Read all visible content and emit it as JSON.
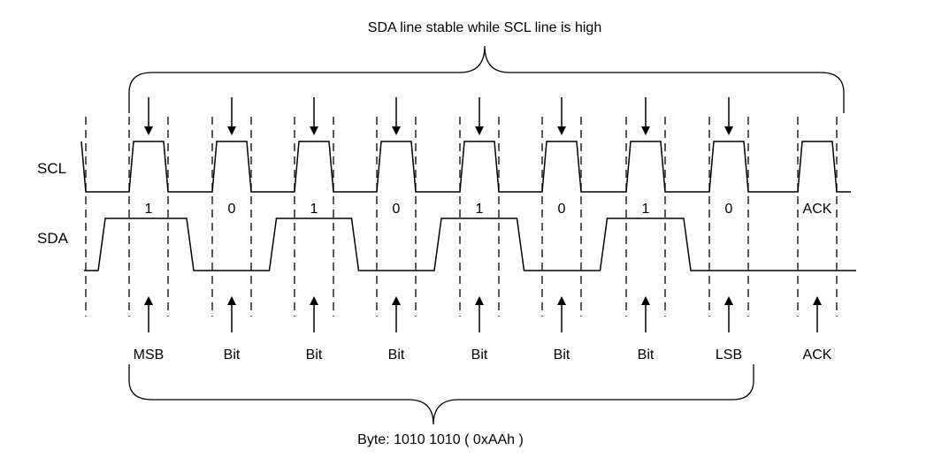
{
  "top_caption": "SDA line stable while SCL line is high",
  "bottom_caption": "Byte: 1010 1010 ( 0xAAh )",
  "signals": {
    "scl": "SCL",
    "sda": "SDA"
  },
  "bits": [
    {
      "value": "1",
      "role": "MSB"
    },
    {
      "value": "0",
      "role": "Bit"
    },
    {
      "value": "1",
      "role": "Bit"
    },
    {
      "value": "0",
      "role": "Bit"
    },
    {
      "value": "1",
      "role": "Bit"
    },
    {
      "value": "0",
      "role": "Bit"
    },
    {
      "value": "1",
      "role": "Bit"
    },
    {
      "value": "0",
      "role": "LSB"
    },
    {
      "value": "ACK",
      "role": "ACK"
    }
  ],
  "sda_levels": [
    1,
    0,
    1,
    0,
    1,
    0,
    1,
    0,
    0
  ]
}
